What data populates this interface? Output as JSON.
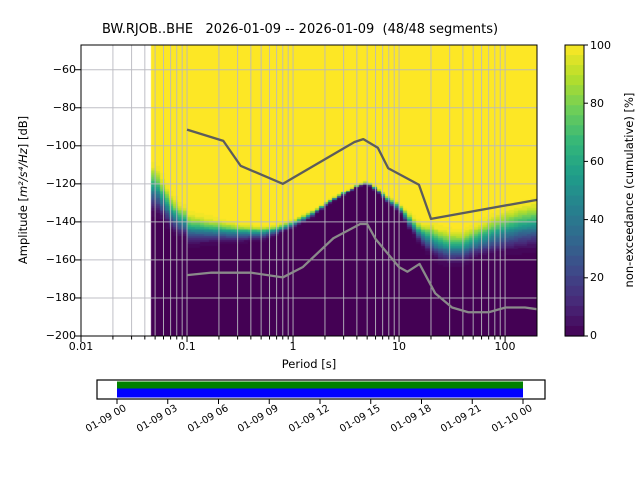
{
  "chart_data": {
    "type": "heatmap",
    "title": "BW.RJOB..BHE   2026-01-09 -- 2026-01-09  (48/48 segments)",
    "xaxis": {
      "label": "Period [s]",
      "scale": "log",
      "lim": [
        0.01,
        200
      ],
      "tick_values": [
        0.01,
        0.1,
        1,
        10,
        100
      ],
      "tick_labels": [
        "0.01",
        "0.1",
        "1",
        "10",
        "100"
      ]
    },
    "yaxis": {
      "label_prefix": "Amplitude [",
      "label_math": "m²/s⁴/Hz",
      "label_suffix": "] [dB]",
      "lim": [
        -200,
        -47
      ],
      "tick_values": [
        -60,
        -80,
        -100,
        -120,
        -140,
        -160,
        -180,
        -200
      ],
      "tick_labels": [
        "−60",
        "−80",
        "−100",
        "−120",
        "−140",
        "−160",
        "−180",
        "−200"
      ]
    },
    "colorbar": {
      "label": "non-exceedance (cumulative) [%]",
      "lim": [
        0,
        100
      ],
      "steps": 29,
      "tick_values": [
        0,
        20,
        40,
        60,
        80,
        100
      ],
      "tick_labels": [
        "0",
        "20",
        "40",
        "60",
        "80",
        "100"
      ]
    },
    "colormap": [
      "#440154",
      "#482878",
      "#3e4989",
      "#31688e",
      "#26828e",
      "#1f9e89",
      "#35b779",
      "#6ece58",
      "#b5de2b",
      "#fde725"
    ],
    "grid_color": "#b9b9c0",
    "data_period_range": [
      0.046,
      200
    ],
    "distribution": {
      "comment": "lower_db = 0% non-exceedance envelope (top of dark purple), upper_db = 100% envelope (bottom of solid yellow)",
      "periods": [
        0.046,
        0.055,
        0.06,
        0.07,
        0.085,
        0.1,
        0.101,
        0.13,
        0.2,
        0.3,
        0.5,
        0.7,
        1.0,
        1.5,
        2,
        3,
        4,
        5,
        6,
        8,
        10,
        13,
        16,
        20,
        25,
        30,
        40,
        50,
        70,
        100,
        140,
        200
      ],
      "upper_db": [
        -107,
        -111,
        -116.5,
        -123.5,
        -129,
        -131,
        -134,
        -135.5,
        -138,
        -140,
        -141.5,
        -141,
        -138.5,
        -134,
        -129.5,
        -124,
        -120.5,
        -118.3,
        -121,
        -126.5,
        -129.5,
        -135.5,
        -140,
        -139.5,
        -142,
        -143,
        -143.5,
        -141,
        -136.5,
        -132,
        -129,
        -127.5
      ],
      "lower_db": [
        -137,
        -138.5,
        -142,
        -145.5,
        -149.5,
        -150,
        -153.4,
        -153,
        -152,
        -151.5,
        -150.5,
        -148,
        -143.5,
        -138.5,
        -132,
        -126.5,
        -122,
        -120.3,
        -124,
        -131,
        -135.5,
        -146,
        -153,
        -159.5,
        -162.5,
        -164,
        -163.5,
        -161,
        -159.5,
        -158,
        -157,
        -156
      ]
    },
    "noise_models": {
      "nhnm_color": "#5c5c5c",
      "nlnm_color": "#8a8a8a",
      "nhnm": [
        [
          0.1,
          -91.5
        ],
        [
          0.22,
          -97.4
        ],
        [
          0.32,
          -110.5
        ],
        [
          0.8,
          -120
        ],
        [
          3.8,
          -98
        ],
        [
          4.6,
          -96.5
        ],
        [
          6.3,
          -101
        ],
        [
          7.9,
          -111.8
        ],
        [
          15.4,
          -120.5
        ],
        [
          20,
          -138.4
        ],
        [
          200,
          -128.4
        ]
      ],
      "nlnm": [
        [
          0.1,
          -168
        ],
        [
          0.17,
          -166.7
        ],
        [
          0.4,
          -166.7
        ],
        [
          0.8,
          -169.2
        ],
        [
          1.24,
          -163.7
        ],
        [
          2.4,
          -148.6
        ],
        [
          4.3,
          -141.1
        ],
        [
          5,
          -141.1
        ],
        [
          6,
          -149
        ],
        [
          10,
          -163.8
        ],
        [
          12,
          -166.2
        ],
        [
          15.6,
          -162.1
        ],
        [
          21.9,
          -177.5
        ],
        [
          31.6,
          -185
        ],
        [
          45,
          -187.5
        ],
        [
          70,
          -187.5
        ],
        [
          101,
          -185
        ],
        [
          154,
          -185
        ],
        [
          200,
          -185.9
        ]
      ]
    }
  },
  "timebar": {
    "green": "#008000",
    "blue": "#0000ff",
    "labels": [
      "01-09 00",
      "01-09 03",
      "01-09 06",
      "01-09 09",
      "01-09 12",
      "01-09 15",
      "01-09 18",
      "01-09 21",
      "01-10 00"
    ]
  }
}
